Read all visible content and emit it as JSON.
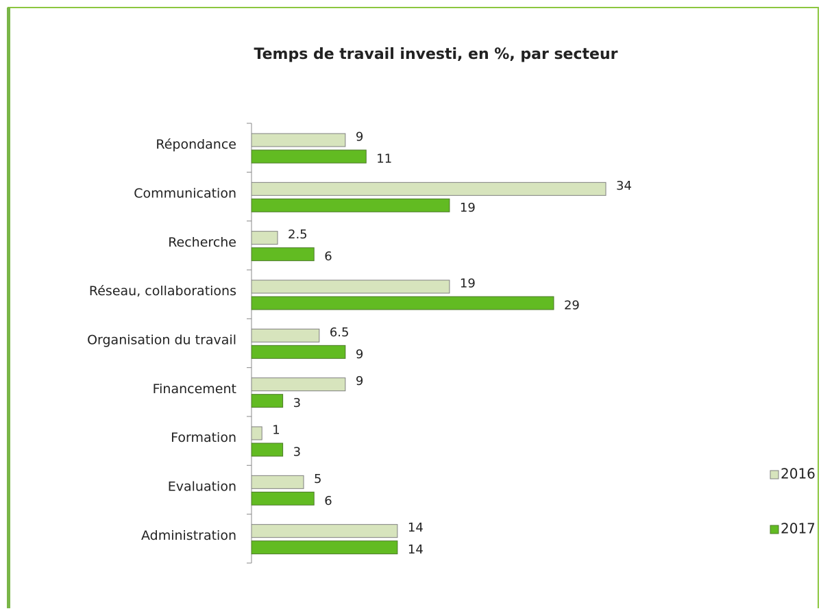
{
  "chart_data": {
    "type": "hbar",
    "title": "Temps de travail investi, en %, par secteur",
    "categories": [
      "Répondance",
      "Communication",
      "Recherche",
      "Réseau, collaborations",
      "Organisation du travail",
      "Financement",
      "Formation",
      "Evaluation",
      "Administration"
    ],
    "series": [
      {
        "name": "2016",
        "color": "#d7e4bd",
        "values": [
          9,
          34,
          2.5,
          19,
          6.5,
          9,
          1,
          5,
          14
        ]
      },
      {
        "name": "2017",
        "color": "#62bb22",
        "values": [
          11,
          19,
          6,
          29,
          9,
          3,
          3,
          6,
          14
        ]
      }
    ],
    "legend": "right"
  }
}
